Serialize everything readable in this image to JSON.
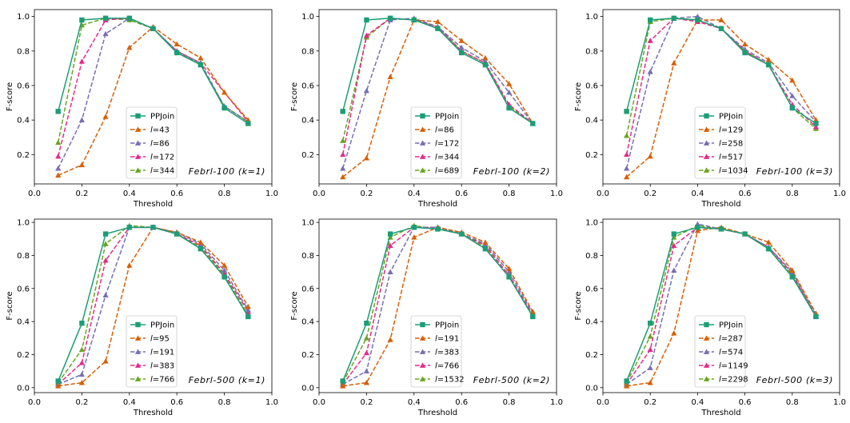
{
  "figure": {
    "background": "#ffffff"
  },
  "colors": {
    "PPJoin": "#1b9e77",
    "s1": "#d95f02",
    "s2": "#7570b3",
    "s3": "#e7298a",
    "s4": "#66a61e"
  },
  "chart_data": [
    {
      "type": "line",
      "annotation": "Febrl-100 (k=1)",
      "xlabel": "Threshold",
      "ylabel": "F-score",
      "xlim": [
        0.0,
        1.0
      ],
      "ylim": [
        0.03,
        1.04
      ],
      "xticks": [
        "0.0",
        "0.2",
        "0.4",
        "0.6",
        "0.8",
        "1.0"
      ],
      "yticks": [
        "0.2",
        "0.4",
        "0.6",
        "0.8",
        "1.0"
      ],
      "x": [
        0.1,
        0.2,
        0.3,
        0.4,
        0.5,
        0.6,
        0.7,
        0.8,
        0.9
      ],
      "series": [
        {
          "name": "PPJoin",
          "prefix": "",
          "num": "",
          "values": [
            0.45,
            0.98,
            0.99,
            0.99,
            0.93,
            0.79,
            0.72,
            0.47,
            0.38
          ]
        },
        {
          "name": "l=43",
          "prefix": "l",
          "num": "=43",
          "values": [
            0.08,
            0.14,
            0.42,
            0.82,
            0.94,
            0.84,
            0.76,
            0.56,
            0.4
          ]
        },
        {
          "name": "l=86",
          "prefix": "l",
          "num": "=86",
          "values": [
            0.12,
            0.4,
            0.9,
            0.99,
            0.93,
            0.8,
            0.73,
            0.48,
            0.39
          ]
        },
        {
          "name": "l=172",
          "prefix": "l",
          "num": "=172",
          "values": [
            0.19,
            0.74,
            0.98,
            0.99,
            0.93,
            0.8,
            0.73,
            0.56,
            0.39
          ]
        },
        {
          "name": "l=344",
          "prefix": "l",
          "num": "=344",
          "values": [
            0.27,
            0.95,
            0.99,
            0.98,
            0.93,
            0.8,
            0.72,
            0.48,
            0.39
          ]
        }
      ]
    },
    {
      "type": "line",
      "annotation": "Febrl-100 (k=2)",
      "xlabel": "Threshold",
      "ylabel": "F-score",
      "xlim": [
        0.0,
        1.0
      ],
      "ylim": [
        0.03,
        1.04
      ],
      "xticks": [
        "0.0",
        "0.2",
        "0.4",
        "0.6",
        "0.8",
        "1.0"
      ],
      "yticks": [
        "0.2",
        "0.4",
        "0.6",
        "0.8",
        "1.0"
      ],
      "x": [
        0.1,
        0.2,
        0.3,
        0.4,
        0.5,
        0.6,
        0.7,
        0.8,
        0.9
      ],
      "series": [
        {
          "name": "PPJoin",
          "prefix": "",
          "num": "",
          "values": [
            0.45,
            0.98,
            0.99,
            0.98,
            0.93,
            0.79,
            0.72,
            0.47,
            0.38
          ]
        },
        {
          "name": "l=86",
          "prefix": "l",
          "num": "=86",
          "values": [
            0.07,
            0.18,
            0.65,
            0.98,
            0.97,
            0.86,
            0.76,
            0.61,
            0.38
          ]
        },
        {
          "name": "l=172",
          "prefix": "l",
          "num": "=172",
          "values": [
            0.12,
            0.57,
            0.98,
            0.99,
            0.94,
            0.82,
            0.74,
            0.56,
            0.38
          ]
        },
        {
          "name": "l=344",
          "prefix": "l",
          "num": "=344",
          "values": [
            0.2,
            0.89,
            0.99,
            0.98,
            0.94,
            0.8,
            0.73,
            0.49,
            0.38
          ]
        },
        {
          "name": "l=689",
          "prefix": "l",
          "num": "=689",
          "values": [
            0.28,
            0.88,
            0.99,
            0.98,
            0.94,
            0.8,
            0.73,
            0.48,
            0.38
          ]
        }
      ]
    },
    {
      "type": "line",
      "annotation": "Febrl-100 (k=3)",
      "xlabel": "Threshold",
      "ylabel": "F-score",
      "xlim": [
        0.0,
        1.0
      ],
      "ylim": [
        0.03,
        1.04
      ],
      "xticks": [
        "0.0",
        "0.2",
        "0.4",
        "0.6",
        "0.8",
        "1.0"
      ],
      "yticks": [
        "0.2",
        "0.4",
        "0.6",
        "0.8",
        "1.0"
      ],
      "x": [
        0.1,
        0.2,
        0.3,
        0.4,
        0.5,
        0.6,
        0.7,
        0.8,
        0.9
      ],
      "series": [
        {
          "name": "PPJoin",
          "prefix": "",
          "num": "",
          "values": [
            0.45,
            0.98,
            0.99,
            0.98,
            0.93,
            0.79,
            0.72,
            0.47,
            0.38
          ]
        },
        {
          "name": "l=129",
          "prefix": "l",
          "num": "=129",
          "values": [
            0.07,
            0.19,
            0.73,
            0.98,
            0.98,
            0.84,
            0.75,
            0.63,
            0.4
          ]
        },
        {
          "name": "l=258",
          "prefix": "l",
          "num": "=258",
          "values": [
            0.12,
            0.68,
            0.99,
            1.0,
            0.93,
            0.81,
            0.73,
            0.54,
            0.39
          ]
        },
        {
          "name": "l=517",
          "prefix": "l",
          "num": "=517",
          "values": [
            0.2,
            0.86,
            0.99,
            0.97,
            0.93,
            0.8,
            0.72,
            0.49,
            0.36
          ]
        },
        {
          "name": "l=1034",
          "prefix": "l",
          "num": "=1034",
          "values": [
            0.31,
            0.97,
            0.99,
            0.98,
            0.93,
            0.8,
            0.72,
            0.47,
            0.35
          ]
        }
      ]
    },
    {
      "type": "line",
      "annotation": "Febrl-500 (k=1)",
      "xlabel": "Threshold",
      "ylabel": "F-score",
      "xlim": [
        0.0,
        1.0
      ],
      "ylim": [
        -0.03,
        1.02
      ],
      "xticks": [
        "0.0",
        "0.2",
        "0.4",
        "0.6",
        "0.8",
        "1.0"
      ],
      "yticks": [
        "0.0",
        "0.2",
        "0.4",
        "0.6",
        "0.8",
        "1.0"
      ],
      "x": [
        0.1,
        0.2,
        0.3,
        0.4,
        0.5,
        0.6,
        0.7,
        0.8,
        0.9
      ],
      "series": [
        {
          "name": "PPJoin",
          "prefix": "",
          "num": "",
          "values": [
            0.04,
            0.39,
            0.93,
            0.97,
            0.97,
            0.93,
            0.84,
            0.67,
            0.43
          ]
        },
        {
          "name": "l=95",
          "prefix": "l",
          "num": "=95",
          "values": [
            0.01,
            0.03,
            0.16,
            0.74,
            0.97,
            0.94,
            0.88,
            0.74,
            0.49
          ]
        },
        {
          "name": "l=191",
          "prefix": "l",
          "num": "=191",
          "values": [
            0.02,
            0.08,
            0.56,
            0.97,
            0.97,
            0.94,
            0.87,
            0.71,
            0.47
          ]
        },
        {
          "name": "l=383",
          "prefix": "l",
          "num": "=383",
          "values": [
            0.02,
            0.15,
            0.77,
            0.97,
            0.97,
            0.93,
            0.86,
            0.69,
            0.46
          ]
        },
        {
          "name": "l=766",
          "prefix": "l",
          "num": "=766",
          "values": [
            0.03,
            0.23,
            0.87,
            0.98,
            0.97,
            0.93,
            0.85,
            0.68,
            0.44
          ]
        }
      ]
    },
    {
      "type": "line",
      "annotation": "Febrl-500 (k=2)",
      "xlabel": "Threshold",
      "ylabel": "F-score",
      "xlim": [
        0.0,
        1.0
      ],
      "ylim": [
        -0.03,
        1.02
      ],
      "xticks": [
        "0.0",
        "0.2",
        "0.4",
        "0.6",
        "0.8",
        "1.0"
      ],
      "yticks": [
        "0.0",
        "0.2",
        "0.4",
        "0.6",
        "0.8",
        "1.0"
      ],
      "x": [
        0.1,
        0.2,
        0.3,
        0.4,
        0.5,
        0.6,
        0.7,
        0.8,
        0.9
      ],
      "series": [
        {
          "name": "PPJoin",
          "prefix": "",
          "num": "",
          "values": [
            0.04,
            0.39,
            0.93,
            0.97,
            0.96,
            0.93,
            0.84,
            0.67,
            0.43
          ]
        },
        {
          "name": "l=191",
          "prefix": "l",
          "num": "=191",
          "values": [
            0.01,
            0.03,
            0.29,
            0.91,
            0.97,
            0.94,
            0.88,
            0.72,
            0.46
          ]
        },
        {
          "name": "l=383",
          "prefix": "l",
          "num": "=383",
          "values": [
            0.02,
            0.1,
            0.7,
            0.97,
            0.97,
            0.93,
            0.87,
            0.7,
            0.45
          ]
        },
        {
          "name": "l=766",
          "prefix": "l",
          "num": "=766",
          "values": [
            0.02,
            0.21,
            0.86,
            0.97,
            0.97,
            0.93,
            0.86,
            0.68,
            0.44
          ]
        },
        {
          "name": "l=1532",
          "prefix": "l",
          "num": "=1532",
          "values": [
            0.03,
            0.3,
            0.91,
            0.98,
            0.96,
            0.93,
            0.85,
            0.67,
            0.44
          ]
        }
      ]
    },
    {
      "type": "line",
      "annotation": "Febrl-500 (k=3)",
      "xlabel": "Threshold",
      "ylabel": "F-score",
      "xlim": [
        0.0,
        1.0
      ],
      "ylim": [
        -0.03,
        1.02
      ],
      "xticks": [
        "0.0",
        "0.2",
        "0.4",
        "0.6",
        "0.8",
        "1.0"
      ],
      "yticks": [
        "0.0",
        "0.2",
        "0.4",
        "0.6",
        "0.8",
        "1.0"
      ],
      "x": [
        0.1,
        0.2,
        0.3,
        0.4,
        0.5,
        0.6,
        0.7,
        0.8,
        0.9
      ],
      "series": [
        {
          "name": "PPJoin",
          "prefix": "",
          "num": "",
          "values": [
            0.04,
            0.39,
            0.93,
            0.97,
            0.96,
            0.93,
            0.84,
            0.67,
            0.43
          ]
        },
        {
          "name": "l=287",
          "prefix": "l",
          "num": "=287",
          "values": [
            0.01,
            0.03,
            0.33,
            0.95,
            0.97,
            0.93,
            0.88,
            0.71,
            0.45
          ]
        },
        {
          "name": "l=574",
          "prefix": "l",
          "num": "=574",
          "values": [
            0.02,
            0.12,
            0.71,
            0.99,
            0.96,
            0.93,
            0.85,
            0.7,
            0.44
          ]
        },
        {
          "name": "l=1149",
          "prefix": "l",
          "num": "=1149",
          "values": [
            0.02,
            0.23,
            0.86,
            0.97,
            0.96,
            0.93,
            0.85,
            0.69,
            0.43
          ]
        },
        {
          "name": "l=2298",
          "prefix": "l",
          "num": "=2298",
          "values": [
            0.03,
            0.31,
            0.91,
            0.98,
            0.96,
            0.93,
            0.84,
            0.68,
            0.43
          ]
        }
      ]
    }
  ]
}
